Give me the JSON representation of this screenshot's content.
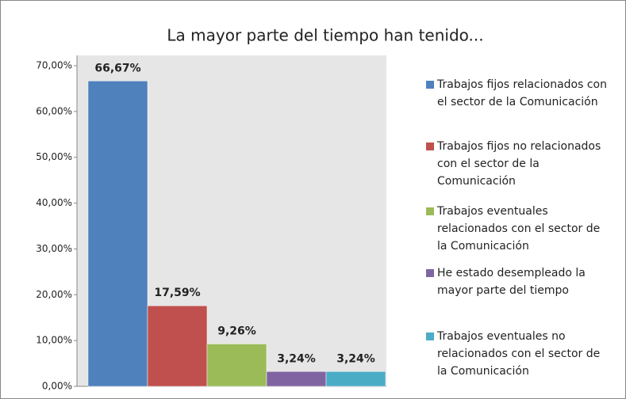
{
  "chart_data": {
    "type": "bar",
    "title": "La mayor parte del tiempo han tenido...",
    "categories": [
      null
    ],
    "series": [
      {
        "name": "Trabajos fijos relacionados con el sector de la Comunicación",
        "color": "#4f81bd",
        "values": [
          66.67
        ],
        "value_labels": [
          "66,67%"
        ]
      },
      {
        "name": "Trabajos fijos no relacionados con el sector de la Comunicación",
        "color": "#c0504d",
        "values": [
          17.59
        ],
        "value_labels": [
          "17,59%"
        ]
      },
      {
        "name": "Trabajos eventuales relacionados con el sector de la Comunicación",
        "color": "#9bbb59",
        "values": [
          9.26
        ],
        "value_labels": [
          "9,26%"
        ]
      },
      {
        "name": "He estado desempleado la mayor parte del tiempo",
        "color": "#8064a2",
        "values": [
          3.24
        ],
        "value_labels": [
          "3,24%"
        ]
      },
      {
        "name": "Trabajos eventuales no relacionados con el sector de la Comunicación",
        "color": "#4bacc6",
        "values": [
          3.24
        ],
        "value_labels": [
          "3,24%"
        ]
      }
    ],
    "ylim": [
      0,
      70
    ],
    "yticks": [
      {
        "value": 0,
        "label": "0,00%"
      },
      {
        "value": 10,
        "label": "10,00%"
      },
      {
        "value": 20,
        "label": "20,00%"
      },
      {
        "value": 30,
        "label": "30,00%"
      },
      {
        "value": 40,
        "label": "40,00%"
      },
      {
        "value": 50,
        "label": "50,00%"
      },
      {
        "value": 60,
        "label": "60,00%"
      },
      {
        "value": 70,
        "label": "70,00%"
      }
    ],
    "grid": false,
    "legend": "right"
  }
}
